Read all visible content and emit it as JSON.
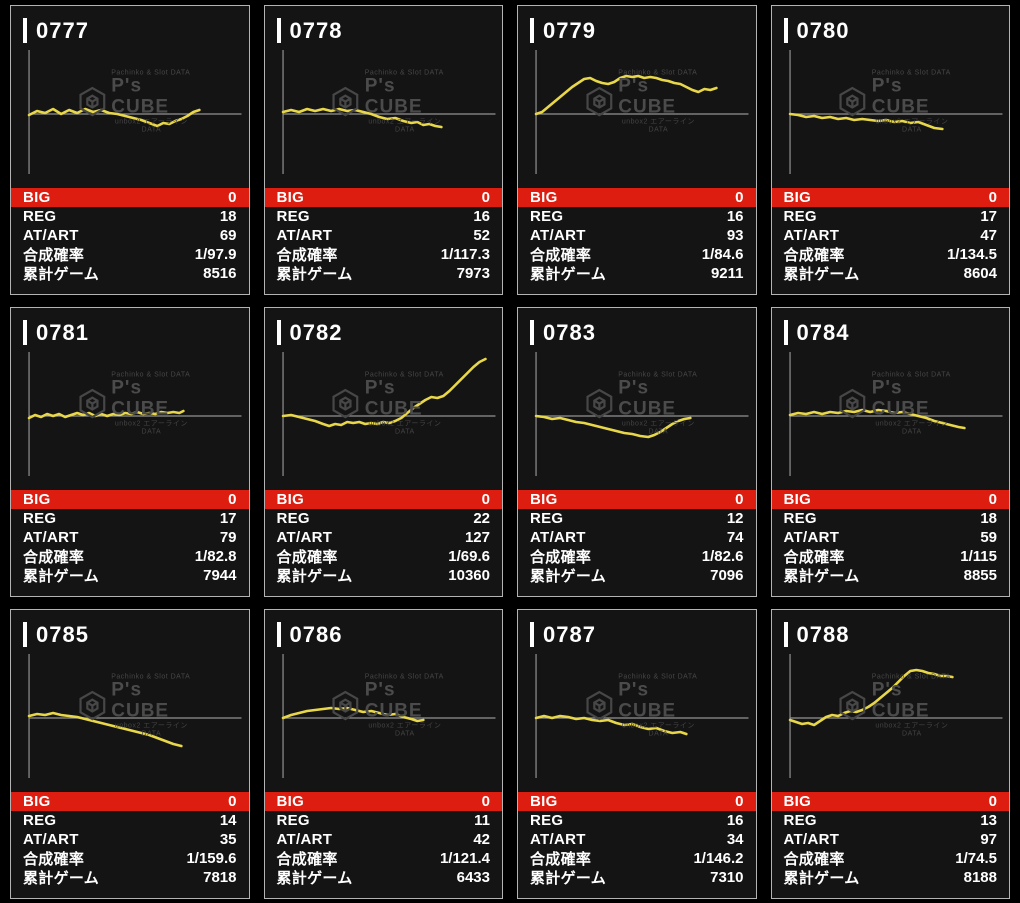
{
  "watermark": {
    "top": "Pachinko & Slot DATA",
    "title": "P's CUBE",
    "subtitle": "unbox2 エアーラインDATA"
  },
  "stat_labels": [
    "BIG",
    "REG",
    "AT/ART",
    "合成確率",
    "累計ゲーム"
  ],
  "colors": {
    "page_bg": "#000000",
    "panel_bg": "#141414",
    "panel_border": "#b3b3b3",
    "big_row_red": "#dc1d10",
    "line_yellow": "#e8d74a",
    "axis_gray": "#929292",
    "watermark_gray": "#474747",
    "text_white": "#ffffff"
  },
  "panels": [
    {
      "id": "0777",
      "big": "0",
      "reg": "18",
      "at_art": "69",
      "rate": "1/97.9",
      "games": "8516"
    },
    {
      "id": "0778",
      "big": "0",
      "reg": "16",
      "at_art": "52",
      "rate": "1/117.3",
      "games": "7973"
    },
    {
      "id": "0779",
      "big": "0",
      "reg": "16",
      "at_art": "93",
      "rate": "1/84.6",
      "games": "9211"
    },
    {
      "id": "0780",
      "big": "0",
      "reg": "17",
      "at_art": "47",
      "rate": "1/134.5",
      "games": "8604"
    },
    {
      "id": "0781",
      "big": "0",
      "reg": "17",
      "at_art": "79",
      "rate": "1/82.8",
      "games": "7944"
    },
    {
      "id": "0782",
      "big": "0",
      "reg": "22",
      "at_art": "127",
      "rate": "1/69.6",
      "games": "10360"
    },
    {
      "id": "0783",
      "big": "0",
      "reg": "12",
      "at_art": "74",
      "rate": "1/82.6",
      "games": "7096"
    },
    {
      "id": "0784",
      "big": "0",
      "reg": "18",
      "at_art": "59",
      "rate": "1/115",
      "games": "8855"
    },
    {
      "id": "0785",
      "big": "0",
      "reg": "14",
      "at_art": "35",
      "rate": "1/159.6",
      "games": "7818"
    },
    {
      "id": "0786",
      "big": "0",
      "reg": "11",
      "at_art": "42",
      "rate": "1/121.4",
      "games": "6433"
    },
    {
      "id": "0787",
      "big": "0",
      "reg": "16",
      "at_art": "34",
      "rate": "1/146.2",
      "games": "7310"
    },
    {
      "id": "0788",
      "big": "0",
      "reg": "13",
      "at_art": "97",
      "rate": "1/74.5",
      "games": "8188"
    }
  ],
  "chart_data": {
    "type": "line",
    "title": "slump graphs (payout differential vs games played), one per machine",
    "legend": "none",
    "axes": {
      "x_start": 18,
      "x_end": 230,
      "axis_y": 66,
      "v_top": 2,
      "v_bottom": 126,
      "grid": false
    },
    "series": [
      {
        "machine": "0777",
        "points": [
          [
            18,
            -1
          ],
          [
            26,
            3
          ],
          [
            34,
            1
          ],
          [
            42,
            5
          ],
          [
            50,
            0
          ],
          [
            58,
            4
          ],
          [
            66,
            1
          ],
          [
            74,
            5
          ],
          [
            82,
            2
          ],
          [
            90,
            4
          ],
          [
            98,
            1
          ],
          [
            106,
            0
          ],
          [
            114,
            -2
          ],
          [
            122,
            -4
          ],
          [
            130,
            -6
          ],
          [
            138,
            -9
          ],
          [
            146,
            -12
          ],
          [
            152,
            -9
          ],
          [
            158,
            -10
          ],
          [
            164,
            -7
          ],
          [
            170,
            -5
          ],
          [
            176,
            -2
          ],
          [
            182,
            2
          ],
          [
            188,
            4
          ]
        ]
      },
      {
        "machine": "0778",
        "points": [
          [
            18,
            2
          ],
          [
            26,
            4
          ],
          [
            34,
            2
          ],
          [
            42,
            5
          ],
          [
            50,
            3
          ],
          [
            58,
            5
          ],
          [
            66,
            3
          ],
          [
            74,
            5
          ],
          [
            82,
            3
          ],
          [
            90,
            4
          ],
          [
            98,
            2
          ],
          [
            106,
            0
          ],
          [
            114,
            -3
          ],
          [
            122,
            -5
          ],
          [
            130,
            -4
          ],
          [
            138,
            -7
          ],
          [
            146,
            -9
          ],
          [
            152,
            -8
          ],
          [
            158,
            -11
          ],
          [
            164,
            -10
          ],
          [
            170,
            -12
          ],
          [
            176,
            -13
          ]
        ]
      },
      {
        "machine": "0779",
        "points": [
          [
            18,
            0
          ],
          [
            24,
            2
          ],
          [
            30,
            7
          ],
          [
            36,
            12
          ],
          [
            42,
            17
          ],
          [
            48,
            22
          ],
          [
            54,
            27
          ],
          [
            60,
            31
          ],
          [
            66,
            35
          ],
          [
            72,
            36
          ],
          [
            78,
            33
          ],
          [
            84,
            31
          ],
          [
            90,
            30
          ],
          [
            96,
            32
          ],
          [
            102,
            36
          ],
          [
            108,
            38
          ],
          [
            114,
            37
          ],
          [
            120,
            38
          ],
          [
            126,
            36
          ],
          [
            132,
            37
          ],
          [
            138,
            36
          ],
          [
            144,
            34
          ],
          [
            150,
            33
          ],
          [
            156,
            31
          ],
          [
            162,
            30
          ],
          [
            168,
            27
          ],
          [
            174,
            24
          ],
          [
            180,
            22
          ],
          [
            186,
            25
          ],
          [
            192,
            24
          ],
          [
            198,
            26
          ]
        ]
      },
      {
        "machine": "0780",
        "points": [
          [
            18,
            0
          ],
          [
            26,
            -1
          ],
          [
            34,
            -3
          ],
          [
            42,
            -2
          ],
          [
            50,
            -4
          ],
          [
            58,
            -3
          ],
          [
            66,
            -5
          ],
          [
            74,
            -4
          ],
          [
            82,
            -6
          ],
          [
            90,
            -5
          ],
          [
            98,
            -6
          ],
          [
            106,
            -7
          ],
          [
            114,
            -6
          ],
          [
            122,
            -8
          ],
          [
            130,
            -7
          ],
          [
            138,
            -9
          ],
          [
            146,
            -8
          ],
          [
            154,
            -11
          ],
          [
            162,
            -14
          ],
          [
            170,
            -15
          ]
        ]
      },
      {
        "machine": "0781",
        "points": [
          [
            18,
            -2
          ],
          [
            24,
            1
          ],
          [
            30,
            -1
          ],
          [
            36,
            2
          ],
          [
            42,
            0
          ],
          [
            48,
            2
          ],
          [
            54,
            -1
          ],
          [
            60,
            1
          ],
          [
            66,
            3
          ],
          [
            72,
            1
          ],
          [
            78,
            3
          ],
          [
            84,
            0
          ],
          [
            90,
            2
          ],
          [
            96,
            0
          ],
          [
            102,
            2
          ],
          [
            108,
            1
          ],
          [
            114,
            3
          ],
          [
            120,
            2
          ],
          [
            126,
            4
          ],
          [
            132,
            2
          ],
          [
            138,
            3
          ],
          [
            144,
            2
          ],
          [
            150,
            4
          ],
          [
            156,
            3
          ],
          [
            162,
            4
          ],
          [
            168,
            3
          ],
          [
            172,
            5
          ]
        ]
      },
      {
        "machine": "0782",
        "points": [
          [
            18,
            0
          ],
          [
            26,
            1
          ],
          [
            34,
            -1
          ],
          [
            42,
            -3
          ],
          [
            50,
            -5
          ],
          [
            58,
            -8
          ],
          [
            64,
            -10
          ],
          [
            70,
            -8
          ],
          [
            76,
            -9
          ],
          [
            82,
            -6
          ],
          [
            88,
            -7
          ],
          [
            94,
            -6
          ],
          [
            100,
            -8
          ],
          [
            106,
            -7
          ],
          [
            112,
            -8
          ],
          [
            118,
            -6
          ],
          [
            124,
            -7
          ],
          [
            130,
            -5
          ],
          [
            136,
            -2
          ],
          [
            142,
            3
          ],
          [
            148,
            8
          ],
          [
            154,
            12
          ],
          [
            160,
            16
          ],
          [
            166,
            19
          ],
          [
            172,
            18
          ],
          [
            178,
            20
          ],
          [
            184,
            25
          ],
          [
            190,
            31
          ],
          [
            196,
            37
          ],
          [
            202,
            43
          ],
          [
            208,
            49
          ],
          [
            214,
            54
          ],
          [
            220,
            57
          ]
        ]
      },
      {
        "machine": "0783",
        "points": [
          [
            18,
            0
          ],
          [
            26,
            -1
          ],
          [
            34,
            -3
          ],
          [
            42,
            -2
          ],
          [
            50,
            -4
          ],
          [
            58,
            -6
          ],
          [
            66,
            -7
          ],
          [
            74,
            -9
          ],
          [
            82,
            -11
          ],
          [
            90,
            -13
          ],
          [
            98,
            -15
          ],
          [
            106,
            -17
          ],
          [
            114,
            -18
          ],
          [
            122,
            -20
          ],
          [
            130,
            -21
          ],
          [
            136,
            -19
          ],
          [
            142,
            -16
          ],
          [
            148,
            -12
          ],
          [
            154,
            -8
          ],
          [
            160,
            -5
          ],
          [
            166,
            -3
          ],
          [
            172,
            -2
          ]
        ]
      },
      {
        "machine": "0784",
        "points": [
          [
            18,
            1
          ],
          [
            26,
            3
          ],
          [
            34,
            2
          ],
          [
            42,
            4
          ],
          [
            50,
            2
          ],
          [
            58,
            4
          ],
          [
            66,
            3
          ],
          [
            74,
            5
          ],
          [
            82,
            4
          ],
          [
            90,
            6
          ],
          [
            98,
            4
          ],
          [
            106,
            6
          ],
          [
            114,
            5
          ],
          [
            122,
            3
          ],
          [
            130,
            4
          ],
          [
            138,
            2
          ],
          [
            146,
            0
          ],
          [
            154,
            -2
          ],
          [
            162,
            -5
          ],
          [
            170,
            -7
          ],
          [
            178,
            -9
          ],
          [
            186,
            -11
          ],
          [
            192,
            -12
          ]
        ]
      },
      {
        "machine": "0785",
        "points": [
          [
            18,
            2
          ],
          [
            26,
            4
          ],
          [
            34,
            3
          ],
          [
            42,
            5
          ],
          [
            50,
            3
          ],
          [
            58,
            2
          ],
          [
            66,
            1
          ],
          [
            74,
            -1
          ],
          [
            82,
            -3
          ],
          [
            90,
            -5
          ],
          [
            98,
            -7
          ],
          [
            106,
            -9
          ],
          [
            114,
            -11
          ],
          [
            122,
            -13
          ],
          [
            130,
            -15
          ],
          [
            138,
            -17
          ],
          [
            146,
            -20
          ],
          [
            154,
            -23
          ],
          [
            162,
            -26
          ],
          [
            170,
            -28
          ]
        ]
      },
      {
        "machine": "0786",
        "points": [
          [
            18,
            0
          ],
          [
            26,
            3
          ],
          [
            34,
            5
          ],
          [
            42,
            7
          ],
          [
            50,
            8
          ],
          [
            58,
            9
          ],
          [
            66,
            10
          ],
          [
            74,
            9
          ],
          [
            82,
            10
          ],
          [
            90,
            8
          ],
          [
            98,
            6
          ],
          [
            106,
            7
          ],
          [
            114,
            5
          ],
          [
            122,
            3
          ],
          [
            130,
            4
          ],
          [
            138,
            1
          ],
          [
            146,
            -1
          ],
          [
            152,
            -3
          ],
          [
            158,
            -2
          ]
        ]
      },
      {
        "machine": "0787",
        "points": [
          [
            18,
            0
          ],
          [
            26,
            2
          ],
          [
            34,
            0
          ],
          [
            42,
            2
          ],
          [
            50,
            1
          ],
          [
            58,
            -1
          ],
          [
            66,
            0
          ],
          [
            74,
            -2
          ],
          [
            82,
            -3
          ],
          [
            90,
            -2
          ],
          [
            98,
            -5
          ],
          [
            106,
            -7
          ],
          [
            114,
            -6
          ],
          [
            122,
            -9
          ],
          [
            130,
            -11
          ],
          [
            138,
            -10
          ],
          [
            146,
            -13
          ],
          [
            154,
            -15
          ],
          [
            162,
            -14
          ],
          [
            168,
            -16
          ]
        ]
      },
      {
        "machine": "0788",
        "points": [
          [
            18,
            -2
          ],
          [
            24,
            -4
          ],
          [
            30,
            -6
          ],
          [
            36,
            -5
          ],
          [
            42,
            -7
          ],
          [
            48,
            -3
          ],
          [
            54,
            1
          ],
          [
            60,
            3
          ],
          [
            66,
            2
          ],
          [
            72,
            5
          ],
          [
            78,
            7
          ],
          [
            84,
            6
          ],
          [
            90,
            8
          ],
          [
            96,
            11
          ],
          [
            102,
            15
          ],
          [
            108,
            20
          ],
          [
            114,
            25
          ],
          [
            120,
            30
          ],
          [
            126,
            36
          ],
          [
            132,
            42
          ],
          [
            138,
            47
          ],
          [
            144,
            48
          ],
          [
            150,
            47
          ],
          [
            156,
            45
          ],
          [
            162,
            44
          ],
          [
            168,
            42
          ],
          [
            174,
            42
          ],
          [
            180,
            41
          ]
        ]
      }
    ]
  }
}
